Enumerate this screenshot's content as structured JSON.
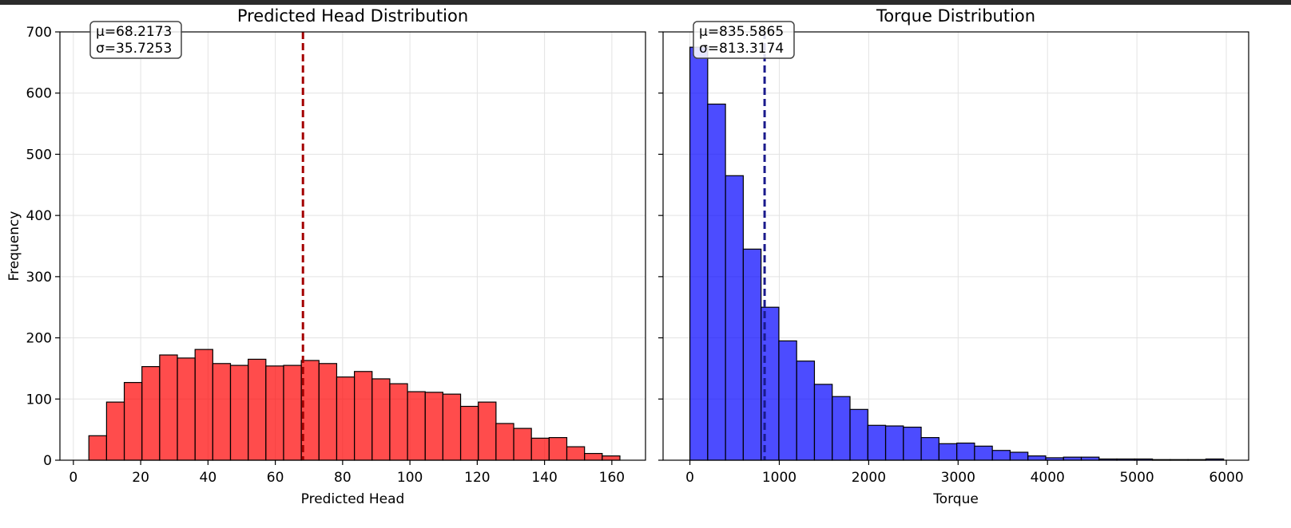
{
  "chart_data": [
    {
      "type": "bar",
      "title": "Predicted Head Distribution",
      "xlabel": "Predicted Head",
      "ylabel": "Frequency",
      "xlim": [
        -4,
        170
      ],
      "ylim": [
        0,
        700
      ],
      "xticks": [
        0,
        20,
        40,
        60,
        80,
        100,
        120,
        140,
        160
      ],
      "yticks": [
        0,
        100,
        200,
        300,
        400,
        500,
        600,
        700
      ],
      "grid": true,
      "bar_color": "#ff0000",
      "bin_start": 4.6,
      "bin_width": 5.26,
      "values": [
        40,
        95,
        127,
        153,
        172,
        167,
        181,
        158,
        155,
        165,
        154,
        155,
        163,
        158,
        136,
        145,
        133,
        125,
        112,
        111,
        108,
        88,
        95,
        60,
        52,
        36,
        37,
        22,
        11,
        7
      ],
      "mean_line": {
        "value": 68.2173,
        "color": "#a40000"
      },
      "stats_box": {
        "mu": "μ=68.2173",
        "sigma": "σ=35.7253"
      }
    },
    {
      "type": "bar",
      "title": "Torque Distribution",
      "xlabel": "Torque",
      "ylabel": "",
      "xlim": [
        -300,
        6250
      ],
      "ylim": [
        0,
        700
      ],
      "xticks": [
        0,
        1000,
        2000,
        3000,
        4000,
        5000,
        6000
      ],
      "yticks": [
        0,
        100,
        200,
        300,
        400,
        500,
        600,
        700
      ],
      "grid": true,
      "bar_color": "#0000ff",
      "bin_start": 0,
      "bin_width": 199,
      "values": [
        675,
        582,
        465,
        345,
        250,
        195,
        162,
        124,
        104,
        83,
        57,
        56,
        54,
        37,
        27,
        28,
        23,
        16,
        13,
        7,
        4,
        5,
        5,
        2,
        2,
        2,
        1,
        1,
        1,
        2
      ],
      "mean_line": {
        "value": 835.5865,
        "color": "#1a1a8c"
      },
      "stats_box": {
        "mu": "μ=835.5865",
        "sigma": "σ=813.3174"
      }
    }
  ]
}
